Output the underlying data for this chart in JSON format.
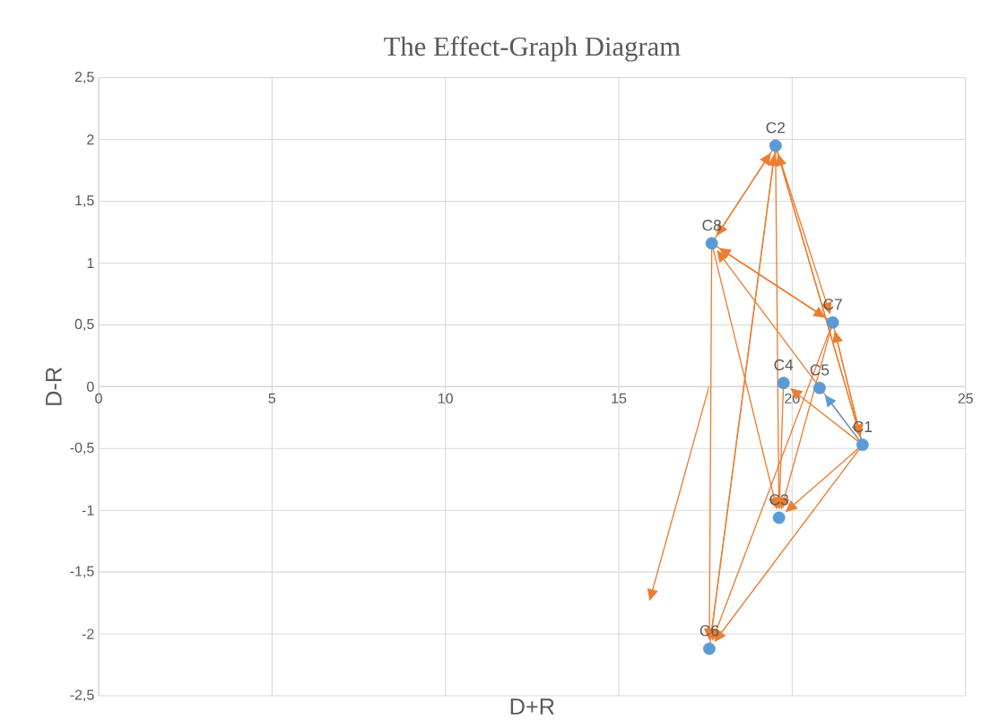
{
  "chart_data": {
    "type": "scatter",
    "title": "The Effect-Graph Diagram",
    "xlabel": "D+R",
    "ylabel": "D-R",
    "xlim": [
      0,
      25
    ],
    "ylim": [
      -2.5,
      2.5
    ],
    "grid": true,
    "xticks": [
      0,
      5,
      10,
      15,
      20,
      25
    ],
    "yticks": [
      {
        "value": -2.5,
        "label": "-2,5"
      },
      -2,
      {
        "value": -1.5,
        "label": "-1,5"
      },
      -1,
      {
        "value": -0.5,
        "label": "-0,5"
      },
      0,
      {
        "value": 0.5,
        "label": "0,5"
      },
      1,
      {
        "value": 1.5,
        "label": "1,5"
      },
      2,
      {
        "value": 2.5,
        "label": "2,5"
      }
    ],
    "series": [
      {
        "type": "scatter",
        "color": "#5b9bd5",
        "marker": "circle",
        "x": [
          22.03,
          19.52,
          19.62,
          19.75,
          20.79,
          17.61,
          21.17,
          17.68
        ],
        "values": [
          -0.47,
          1.95,
          -1.06,
          0.03,
          -0.01,
          -2.12,
          0.52,
          1.16
        ]
      }
    ],
    "annotations": [
      {
        "text": "C1",
        "x": 22.03,
        "y": -0.47
      },
      {
        "text": "C2",
        "x": 19.52,
        "y": 1.95
      },
      {
        "text": "C3",
        "x": 19.62,
        "y": -1.06
      },
      {
        "text": "C4",
        "x": 19.75,
        "y": 0.03
      },
      {
        "text": "C5",
        "x": 20.79,
        "y": -0.01
      },
      {
        "text": "C6",
        "x": 17.61,
        "y": -2.12
      },
      {
        "text": "C7",
        "x": 21.17,
        "y": 0.52
      },
      {
        "text": "C8",
        "x": 17.68,
        "y": 1.16
      }
    ]
  }
}
